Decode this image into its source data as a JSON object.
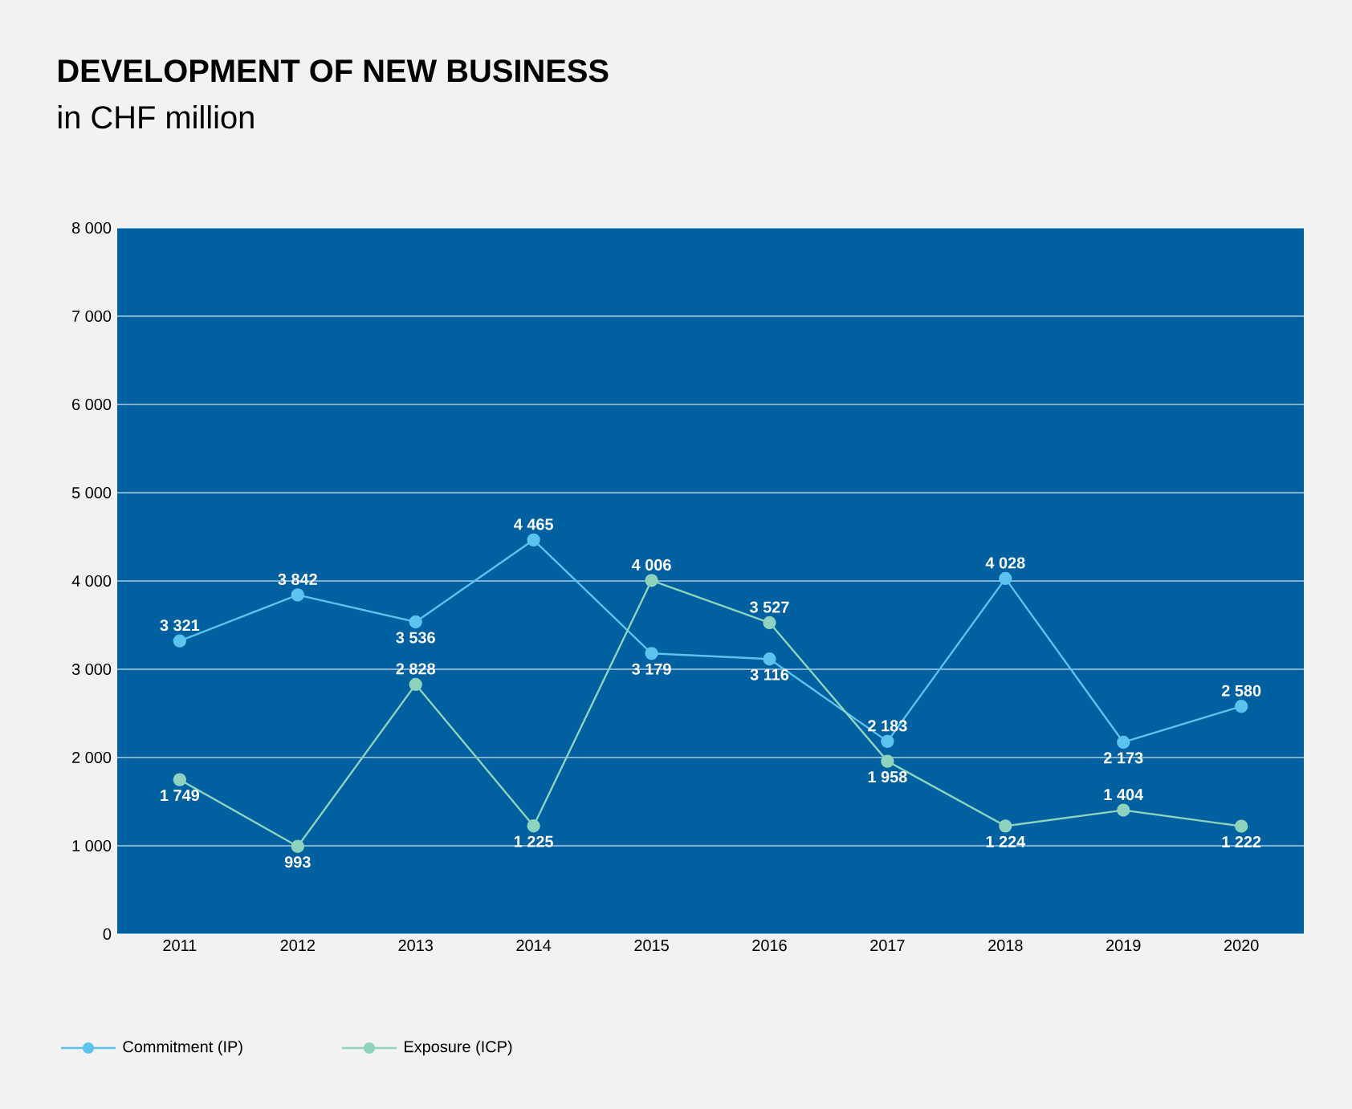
{
  "chart_data": {
    "type": "line",
    "title": "DEVELOPMENT OF NEW BUSINESS",
    "subtitle": "in CHF million",
    "categories": [
      "2011",
      "2012",
      "2013",
      "2014",
      "2015",
      "2016",
      "2017",
      "2018",
      "2019",
      "2020"
    ],
    "series": [
      {
        "name": "Commitment (IP)",
        "color": "#5bc4ee",
        "values": [
          3321,
          3842,
          3536,
          4465,
          3179,
          3116,
          2183,
          4028,
          2173,
          2580
        ],
        "value_labels": [
          "3 321",
          "3 842",
          "3 536",
          "4 465",
          "3 179",
          "3 116",
          "2 183",
          "4 028",
          "2 173",
          "2 580"
        ]
      },
      {
        "name": "Exposure (ICP)",
        "color": "#8ed3bd",
        "values": [
          1749,
          993,
          2828,
          1225,
          4006,
          3527,
          1958,
          1224,
          1404,
          1222
        ],
        "value_labels": [
          "1 749",
          "993",
          "2 828",
          "1 225",
          "4 006",
          "3 527",
          "1 958",
          "1 224",
          "1 404",
          "1 222"
        ]
      }
    ],
    "ylim": [
      0,
      8000
    ],
    "yticks": [
      0,
      {
        "value": 1000,
        "label": "1 000"
      },
      {
        "value": 2000,
        "label": "2 000"
      },
      {
        "value": 3000,
        "label": "3 000"
      },
      {
        "value": 4000,
        "label": "4 000"
      },
      {
        "value": 5000,
        "label": "5 000"
      },
      {
        "value": 6000,
        "label": "6 000"
      },
      {
        "value": 7000,
        "label": "7 000"
      },
      {
        "value": 8000,
        "label": "8 000"
      }
    ],
    "grid": "y",
    "legend": "bottom left",
    "marker": "circle",
    "line_style": "solid"
  }
}
